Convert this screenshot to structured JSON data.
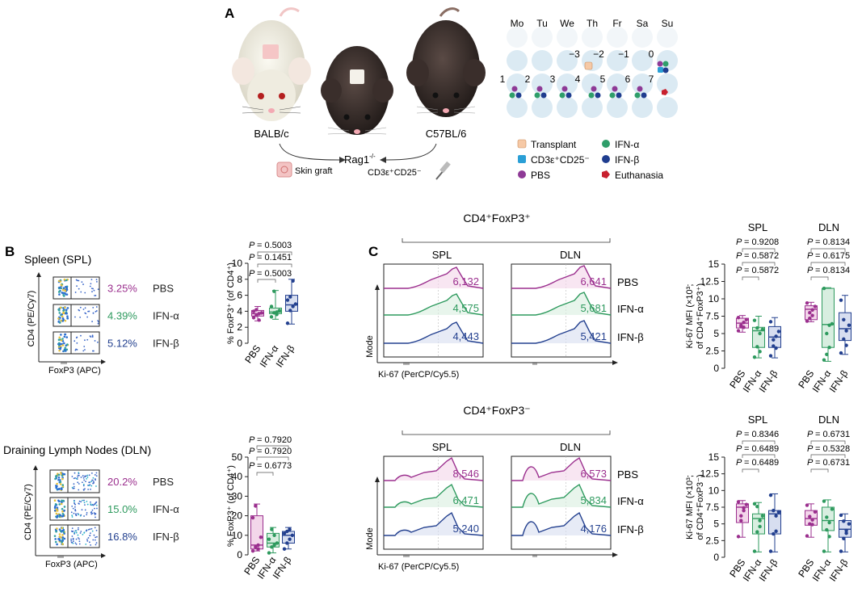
{
  "panel_labels": {
    "a": "A",
    "b": "B",
    "c": "C"
  },
  "panelA": {
    "mice": {
      "donor": "BALB/c",
      "recipient_base": "Rag1",
      "recipient_sup": "-/-",
      "cell_donor": "C57BL/6"
    },
    "skin_graft_label": "Skin graft",
    "cells_label": "CD3ε⁺CD25⁻",
    "days": [
      "Mo",
      "Tu",
      "We",
      "Th",
      "Fr",
      "Sa",
      "Su"
    ],
    "day_numbers": {
      "m3": "−3",
      "m2": "−2",
      "m1": "−1",
      "d0": "0",
      "d1": "1",
      "d2": "2",
      "d3": "3",
      "d4": "4",
      "d5": "5",
      "d6": "6",
      "d7": "7"
    },
    "legend": [
      {
        "label": "Transplant",
        "color": "#f6c9a6"
      },
      {
        "label": "IFN-α",
        "color": "#2f9e6a"
      },
      {
        "label": "CD3ε⁺CD25⁻",
        "color": "#2a9fd6"
      },
      {
        "label": "IFN-β",
        "color": "#1f3d8f"
      },
      {
        "label": "PBS",
        "color": "#8e3a96"
      },
      {
        "label": "Euthanasia",
        "color": "#c8202e"
      }
    ]
  },
  "colors": {
    "pbs": "#9b2f8e",
    "ifna": "#2e9a5e",
    "ifnb": "#23408f",
    "box_pbs": "#f3d6ea",
    "box_ifna": "#d8eee0",
    "box_ifnb": "#d7def0"
  },
  "panelB": {
    "spl": {
      "title": "Spleen (SPL)",
      "y_axis": "CD4 (PE/Cy7)",
      "x_axis": "FoxP3 (APC)",
      "rows": [
        {
          "pct": "3.25%",
          "label": "PBS"
        },
        {
          "pct": "4.39%",
          "label": "IFN-α"
        },
        {
          "pct": "5.12%",
          "label": "IFN-β"
        }
      ],
      "p_values": [
        "P = 0.5003",
        "P = 0.1451",
        "P = 0.5003"
      ]
    },
    "dln": {
      "title": "Draining Lymph Nodes (DLN)",
      "y_axis": "CD4 (PE/Cy7)",
      "x_axis": "FoxP3 (APC)",
      "rows": [
        {
          "pct": "20.2%",
          "label": "PBS"
        },
        {
          "pct": "15.0%",
          "label": "IFN-α"
        },
        {
          "pct": "16.8%",
          "label": "IFN-β"
        }
      ],
      "p_values": [
        "P = 0.7920",
        "P = 0.7920",
        "P = 0.6773"
      ]
    }
  },
  "panelC": {
    "pos": {
      "title": "CD4⁺FoxP3⁺",
      "col_spl": "SPL",
      "col_dln": "DLN",
      "spl_values": [
        "6,132",
        "4,575",
        "4,443"
      ],
      "dln_values": [
        "6,641",
        "5,681",
        "5,421"
      ],
      "row_labels": [
        "PBS",
        "IFN-α",
        "IFN-β"
      ],
      "y_axis": "Mode",
      "x_axis": "Ki-67 (PerCP/Cy5.5)",
      "box_spl_title": "SPL",
      "box_dln_title": "DLN",
      "spl_p": [
        "P = 0.9208",
        "P = 0.5872",
        "P = 0.5872"
      ],
      "dln_p": [
        "P = 0.8134",
        "P = 0.6175",
        "P = 0.8134"
      ],
      "box_y_line1": "Ki-67 MFI (×10³;",
      "box_y_line2": "of CD4⁺FoxP3⁺)"
    },
    "neg": {
      "title": "CD4⁺FoxP3⁻",
      "col_spl": "SPL",
      "col_dln": "DLN",
      "spl_values": [
        "8,546",
        "6,471",
        "5,240"
      ],
      "dln_values": [
        "6,573",
        "5,834",
        "4,176"
      ],
      "row_labels": [
        "PBS",
        "IFN-α",
        "IFN-β"
      ],
      "y_axis": "Mode",
      "x_axis": "Ki-67 (PerCP/Cy5.5)",
      "box_spl_title": "SPL",
      "box_dln_title": "DLN",
      "spl_p": [
        "P = 0.8346",
        "P = 0.6489",
        "P = 0.6489"
      ],
      "dln_p": [
        "P = 0.6731",
        "P = 0.5328",
        "P = 0.6731"
      ],
      "box_y_line1": "Ki-67 MFI (×10³;",
      "box_y_line2": "of CD4⁺FoxP3⁻)"
    }
  },
  "chart_data": [
    {
      "type": "box",
      "id": "b_spl",
      "title": "",
      "ylabel": "% FoxP3⁺ (of CD4⁺)",
      "ylim": [
        0,
        10
      ],
      "yticks": [
        "0",
        "2",
        "4",
        "6",
        "8",
        "10"
      ],
      "categories": [
        "PBS",
        "IFN-α",
        "IFN-β"
      ],
      "boxes": [
        {
          "min": 2.8,
          "q1": 3.4,
          "median": 3.7,
          "q3": 4.1,
          "max": 4.6
        },
        {
          "min": 3.0,
          "q1": 3.7,
          "median": 3.9,
          "q3": 4.4,
          "max": 6.6
        },
        {
          "min": 2.4,
          "q1": 4.0,
          "median": 4.8,
          "q3": 6.0,
          "max": 8.0
        }
      ],
      "points": [
        [
          3.2,
          3.5,
          3.7,
          3.8,
          4.0,
          4.2,
          2.9
        ],
        [
          3.3,
          3.8,
          3.9,
          4.1,
          4.6,
          6.5,
          3.6
        ],
        [
          2.5,
          4.1,
          4.6,
          4.9,
          5.4,
          5.8,
          7.8
        ]
      ]
    },
    {
      "type": "box",
      "id": "b_dln",
      "title": "",
      "ylabel": "% FoxP3⁺ (of CD4⁺)",
      "ylim": [
        0,
        50
      ],
      "yticks": [
        "0",
        "10",
        "20",
        "30",
        "40",
        "50"
      ],
      "categories": [
        "PBS",
        "IFN-α",
        "IFN-β"
      ],
      "boxes": [
        {
          "min": 2,
          "q1": 3,
          "median": 5,
          "q3": 20,
          "max": 26
        },
        {
          "min": 1,
          "q1": 4,
          "median": 6,
          "q3": 11,
          "max": 14
        },
        {
          "min": 3,
          "q1": 6,
          "median": 10,
          "q3": 12,
          "max": 14
        }
      ],
      "points": [
        [
          2,
          4,
          5,
          9,
          19,
          25,
          3
        ],
        [
          1,
          4,
          5,
          6,
          8,
          13,
          10
        ],
        [
          3,
          6,
          8,
          10,
          11,
          12,
          13
        ]
      ]
    },
    {
      "type": "box",
      "id": "c_pos",
      "title": "",
      "ylabel": "Ki-67 MFI (×10³; of CD4⁺FoxP3⁺)",
      "ylim": [
        0,
        15
      ],
      "yticks": [
        "0",
        "2.5",
        "5",
        "7.5",
        "10",
        "12.5",
        "15"
      ],
      "categories": [
        "PBS",
        "IFN-α",
        "IFN-β",
        "PBS",
        "IFN-α",
        "IFN-β"
      ],
      "boxes": [
        {
          "min": 5.2,
          "q1": 5.8,
          "median": 6.5,
          "q3": 7.2,
          "max": 7.6
        },
        {
          "min": 1.5,
          "q1": 3.0,
          "median": 5.4,
          "q3": 5.9,
          "max": 7.5
        },
        {
          "min": 1.5,
          "q1": 3.0,
          "median": 4.5,
          "q3": 6.0,
          "max": 7.3
        },
        {
          "min": 6.7,
          "q1": 7.0,
          "median": 8.5,
          "q3": 9.0,
          "max": 9.5
        },
        {
          "min": 1.0,
          "q1": 3.0,
          "median": 6.3,
          "q3": 11.5,
          "max": 11.6
        },
        {
          "min": 2.0,
          "q1": 4.0,
          "median": 5.7,
          "q3": 8.0,
          "max": 10.5
        }
      ],
      "points": [
        [
          5.4,
          6.2,
          6.6,
          7.0,
          7.3,
          6.0,
          5.9
        ],
        [
          1.6,
          3.1,
          5.0,
          5.6,
          6.9,
          5.8,
          2.4
        ],
        [
          1.8,
          3.2,
          4.6,
          5.3,
          6.7,
          4.1,
          2.9
        ],
        [
          6.8,
          7.2,
          8.4,
          8.9,
          9.4,
          8.0,
          7.6
        ],
        [
          1.2,
          2.0,
          6.2,
          6.4,
          11.5,
          5.0,
          3.0
        ],
        [
          2.2,
          4.2,
          5.4,
          6.2,
          9.8,
          7.0,
          3.3
        ]
      ]
    },
    {
      "type": "box",
      "id": "c_neg",
      "title": "",
      "ylabel": "Ki-67 MFI (×10³; of CD4⁺FoxP3⁻)",
      "ylim": [
        0,
        15
      ],
      "yticks": [
        "0",
        "2.5",
        "5",
        "7.5",
        "10",
        "12.5",
        "15"
      ],
      "categories": [
        "PBS",
        "IFN-α",
        "IFN-β",
        "PBS",
        "IFN-α",
        "IFN-β"
      ],
      "boxes": [
        {
          "min": 3.0,
          "q1": 5.2,
          "median": 7.5,
          "q3": 8.0,
          "max": 8.5
        },
        {
          "min": 0.8,
          "q1": 3.5,
          "median": 5.8,
          "q3": 6.5,
          "max": 8.2
        },
        {
          "min": 0.8,
          "q1": 3.5,
          "median": 6.5,
          "q3": 7.0,
          "max": 9.5
        },
        {
          "min": 3.0,
          "q1": 4.8,
          "median": 5.8,
          "q3": 7.0,
          "max": 8.0
        },
        {
          "min": 0.8,
          "q1": 4.0,
          "median": 5.5,
          "q3": 7.5,
          "max": 8.6
        },
        {
          "min": 0.8,
          "q1": 3.0,
          "median": 4.2,
          "q3": 5.5,
          "max": 6.5
        }
      ],
      "points": [
        [
          3.1,
          5.5,
          7.4,
          7.9,
          8.3,
          6.2,
          7.0
        ],
        [
          0.9,
          3.8,
          5.5,
          6.2,
          8.0,
          7.6,
          4.6
        ],
        [
          0.9,
          3.5,
          6.2,
          6.8,
          9.3,
          7.0,
          3.9
        ],
        [
          3.2,
          5.0,
          5.6,
          6.8,
          7.8,
          6.1,
          4.9
        ],
        [
          0.9,
          4.1,
          5.2,
          7.2,
          8.4,
          6.0,
          3.1
        ],
        [
          0.9,
          2.8,
          4.0,
          5.0,
          6.3,
          5.4,
          3.6
        ]
      ]
    }
  ]
}
